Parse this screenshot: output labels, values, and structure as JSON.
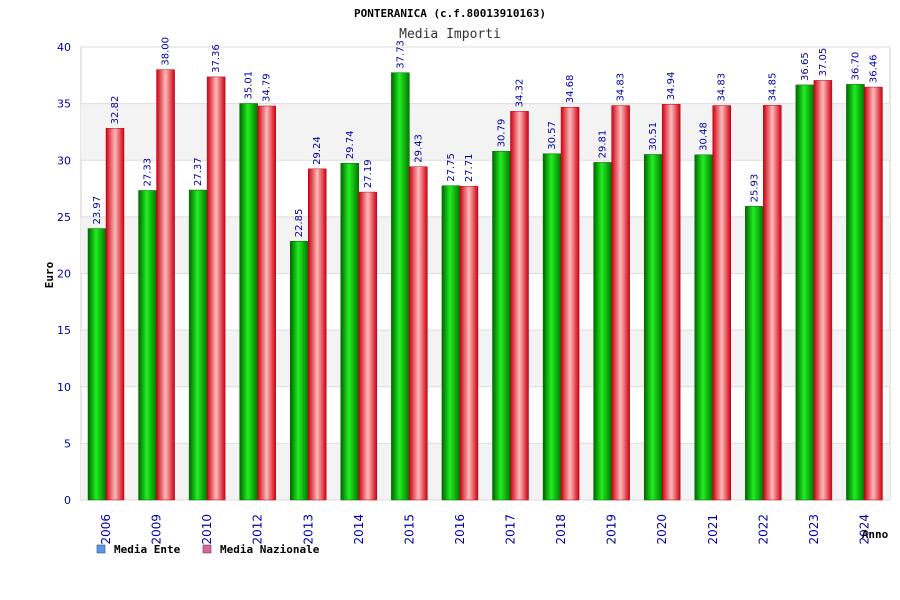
{
  "chart_data": {
    "type": "bar",
    "title": "PONTERANICA (c.f.80013910163)",
    "subtitle": "Media Importi",
    "xlabel": "Anno",
    "ylabel": "Euro",
    "ylim": [
      0,
      40
    ],
    "yticks": [
      0,
      5,
      10,
      15,
      20,
      25,
      30,
      35,
      40
    ],
    "categories": [
      "2006",
      "2009",
      "2010",
      "2012",
      "2013",
      "2014",
      "2015",
      "2016",
      "2017",
      "2018",
      "2019",
      "2020",
      "2021",
      "2022",
      "2023",
      "2024"
    ],
    "series": [
      {
        "name": "Media Ente",
        "color": "#00aa00",
        "values": [
          23.97,
          27.33,
          27.37,
          35.01,
          22.85,
          29.74,
          37.73,
          27.75,
          30.79,
          30.57,
          29.81,
          30.51,
          30.48,
          25.93,
          36.65,
          36.7
        ],
        "labels": [
          "23.97",
          "27.33",
          "27.37",
          "35.01",
          "22.85",
          "29.74",
          "37.73",
          "27.75",
          "30.79",
          "30.57",
          "29.81",
          "30.51",
          "30.48",
          "25.93",
          "36.65",
          "36.70"
        ]
      },
      {
        "name": "Media Nazionale",
        "color": "#dd1122",
        "values": [
          32.82,
          38.0,
          37.36,
          34.79,
          29.24,
          27.19,
          29.43,
          27.71,
          34.32,
          34.68,
          34.83,
          34.94,
          34.83,
          34.85,
          37.05,
          36.46
        ],
        "labels": [
          "32.82",
          "38.00",
          "37.36",
          "34.79",
          "29.24",
          "27.19",
          "29.43",
          "27.71",
          "34.32",
          "34.68",
          "34.83",
          "34.94",
          "34.83",
          "34.85",
          "37.05",
          "36.46"
        ]
      }
    ],
    "legend": [
      {
        "label": "Media Ente",
        "color": "#5599ee"
      },
      {
        "label": "Media Nazionale",
        "color": "#dd6699"
      }
    ],
    "grid": true,
    "legend_position": "bottom-left"
  }
}
